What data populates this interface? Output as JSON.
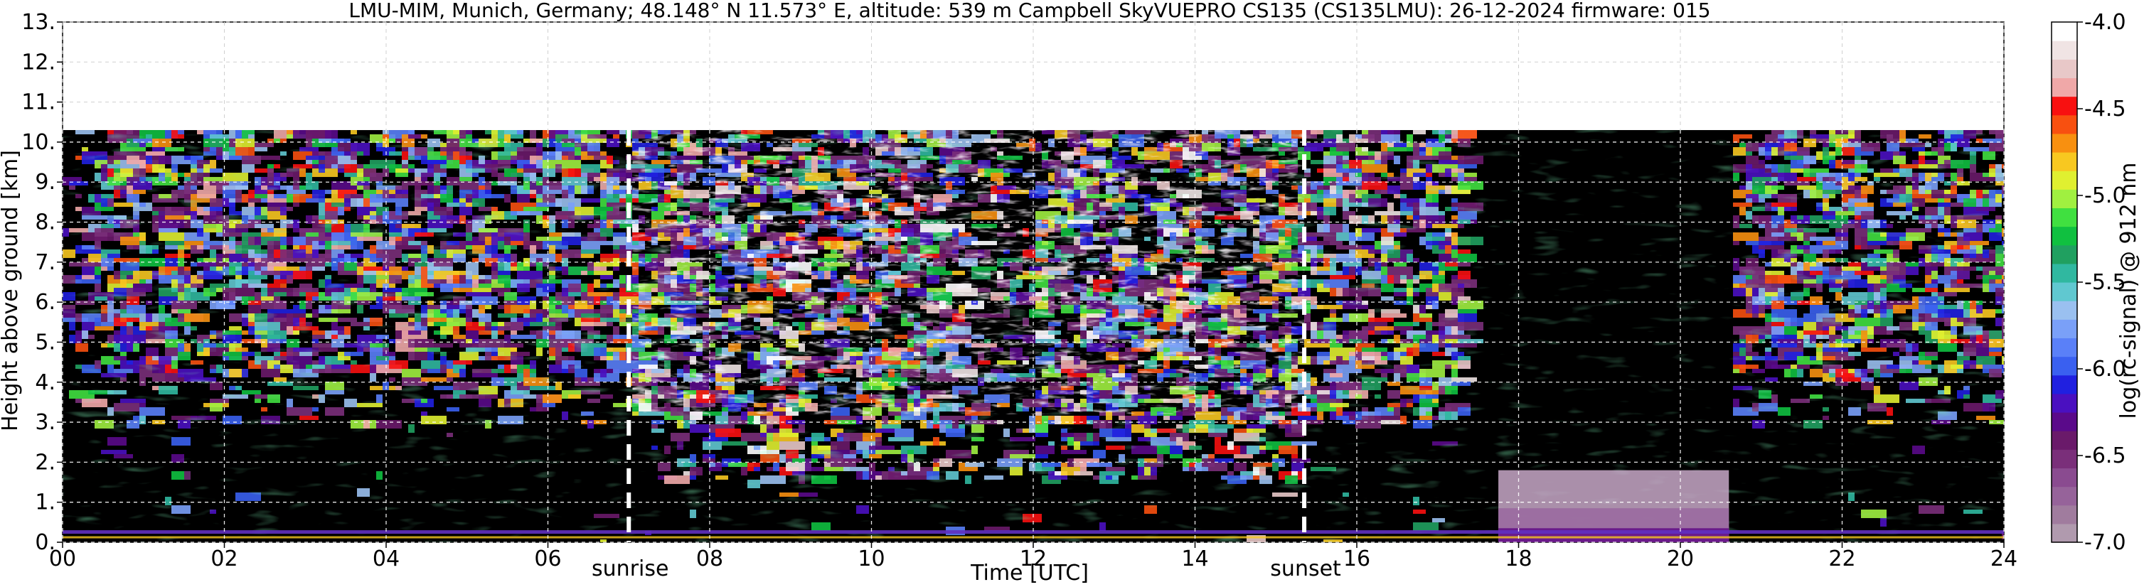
{
  "chart_data": {
    "type": "heatmap",
    "title": "LMU-MIM, Munich, Germany; 48.148° N 11.573° E, altitude: 539 m    Campbell SkyVUEPRO CS135 (CS135LMU): 26-12-2024    firmware: 015",
    "xlabel": "Time [UTC]",
    "ylabel": "Height above ground [km]",
    "xlim": [
      0,
      24
    ],
    "ylim": [
      0,
      13
    ],
    "x_ticks": [
      "00",
      "02",
      "04",
      "06",
      "08",
      "10",
      "12",
      "14",
      "16",
      "18",
      "20",
      "22",
      "24"
    ],
    "y_ticks": [
      "0.",
      "1.",
      "2.",
      "3.",
      "4.",
      "5.",
      "6.",
      "7.",
      "8.",
      "9.",
      "10.",
      "11.",
      "12.",
      "13."
    ],
    "grid": true,
    "data_top_km": 10.3,
    "colorbar": {
      "label": "log(rc-signal) @ 912 nm",
      "range": [
        -7.0,
        -4.0
      ],
      "ticks": [
        "-4.0",
        "-4.5",
        "-5.0",
        "-5.5",
        "-6.0",
        "-6.5",
        "-7.0"
      ],
      "colors": [
        "#b09aae",
        "#a07c9e",
        "#96639a",
        "#8a4b90",
        "#7a2f7a",
        "#6a1a6a",
        "#5a0a8a",
        "#4a10c0",
        "#2020e0",
        "#3a60f0",
        "#5a80f8",
        "#7aa0f8",
        "#9ac0f0",
        "#60c8d0",
        "#30b8a0",
        "#20a060",
        "#10c040",
        "#40e040",
        "#a0f040",
        "#e0f030",
        "#f8c820",
        "#f89010",
        "#f85010",
        "#f81010",
        "#f0a8a8",
        "#e8c8c8",
        "#f0e4e4",
        "#ffffff"
      ]
    },
    "annotations": [
      {
        "label": "sunrise",
        "x": 7.0
      },
      {
        "label": "sunset",
        "x": 15.35
      }
    ]
  }
}
